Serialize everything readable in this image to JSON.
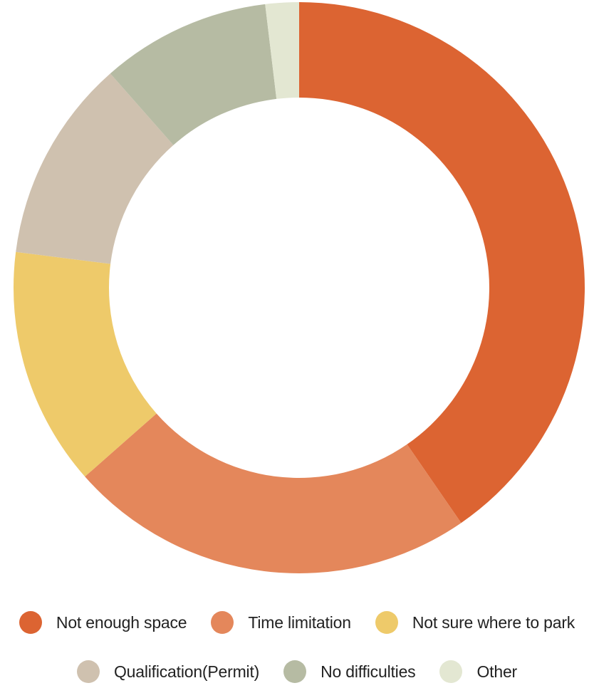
{
  "chart_data": {
    "type": "pie",
    "variant": "donut",
    "title": "",
    "legend_position": "bottom",
    "categories": [
      "Not enough space",
      "Time limitation",
      "Not sure where to park",
      "Qualification(Permit)",
      "No difficulties",
      "Other"
    ],
    "values": [
      40.4,
      23.1,
      13.5,
      11.5,
      9.6,
      1.9
    ],
    "colors": [
      "#DC6432",
      "#E4875B",
      "#EECA6A",
      "#CFC1AF",
      "#B6BBA3",
      "#E3E7D2"
    ]
  },
  "legend": {
    "items": [
      {
        "label": "Not enough space",
        "color": "#DC6432"
      },
      {
        "label": "Time limitation",
        "color": "#E4875B"
      },
      {
        "label": "Not sure where to park",
        "color": "#EECA6A"
      },
      {
        "label": "Qualification(Permit)",
        "color": "#CFC1AF"
      },
      {
        "label": "No difficulties",
        "color": "#B6BBA3"
      },
      {
        "label": "Other",
        "color": "#E3E7D2"
      }
    ]
  }
}
